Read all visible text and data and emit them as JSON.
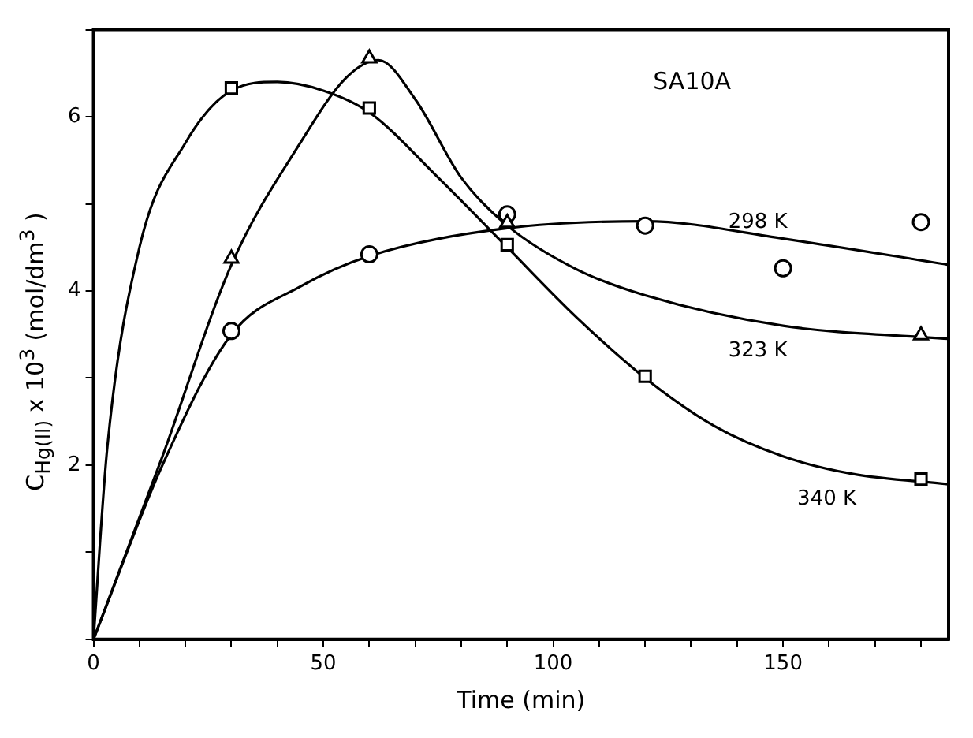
{
  "chart_data": {
    "type": "scatter",
    "xlabel": "Time (min)",
    "ylabel": "C$_{Hg(II)}$ x 10$^{3}$ (mol/dm$^{3}$ )",
    "xlim": [
      0,
      186
    ],
    "ylim": [
      0,
      7
    ],
    "xticks": [
      0,
      {
        "value": 10,
        "label": null
      },
      {
        "value": 20,
        "label": null
      },
      {
        "value": 30,
        "label": null
      },
      {
        "value": 40,
        "label": null
      },
      50,
      {
        "value": 60,
        "label": null
      },
      {
        "value": 70,
        "label": null
      },
      {
        "value": 80,
        "label": null
      },
      {
        "value": 90,
        "label": null
      },
      100,
      {
        "value": 110,
        "label": null
      },
      {
        "value": 120,
        "label": null
      },
      {
        "value": 130,
        "label": null
      },
      {
        "value": 140,
        "label": null
      },
      150,
      {
        "value": 160,
        "label": null
      },
      {
        "value": 170,
        "label": null
      },
      {
        "value": 180,
        "label": null
      }
    ],
    "yticks": [
      {
        "value": 0,
        "label": null
      },
      {
        "value": 1,
        "label": null
      },
      2,
      {
        "value": 3,
        "label": null
      },
      4,
      {
        "value": 5,
        "label": null
      },
      6,
      {
        "value": 7,
        "label": null
      }
    ],
    "grid": false,
    "series": [
      {
        "marker": "circle",
        "color": "#000000",
        "x": [
          30,
          60,
          90,
          120,
          150,
          180
        ],
        "values": [
          3.54,
          4.42,
          4.88,
          4.75,
          4.26,
          4.79
        ]
      },
      {
        "marker": "triangle",
        "color": "#000000",
        "x": [
          30,
          60,
          90,
          180
        ],
        "values": [
          4.37,
          6.67,
          4.78,
          3.49
        ]
      },
      {
        "marker": "square",
        "color": "#000000",
        "x": [
          30,
          60,
          90,
          120,
          180
        ],
        "values": [
          6.33,
          6.1,
          4.53,
          3.02,
          1.84
        ]
      },
      {
        "type": "line",
        "name": "298 K",
        "marker": "none",
        "line_style": "solid",
        "color": "#000000",
        "x": [
          0,
          15,
          30,
          45,
          60,
          90,
          120,
          150,
          186
        ],
        "values": [
          0,
          2.0,
          3.5,
          4.05,
          4.4,
          4.72,
          4.8,
          4.6,
          4.3
        ]
      },
      {
        "type": "line",
        "name": "323 K",
        "marker": "none",
        "line_style": "solid",
        "color": "#000000",
        "x": [
          0,
          15,
          30,
          45,
          55,
          62,
          70,
          80,
          90,
          105,
          120,
          150,
          186
        ],
        "values": [
          0,
          2.1,
          4.3,
          5.7,
          6.45,
          6.65,
          6.2,
          5.3,
          4.75,
          4.25,
          3.95,
          3.6,
          3.45
        ]
      },
      {
        "type": "line",
        "name": "340 K",
        "marker": "none",
        "line_style": "solid",
        "color": "#000000",
        "x": [
          0,
          3,
          10,
          20,
          30,
          40,
          50,
          60,
          75,
          90,
          105,
          120,
          135,
          150,
          165,
          186
        ],
        "values": [
          0,
          2.2,
          4.5,
          5.7,
          6.3,
          6.4,
          6.3,
          6.05,
          5.3,
          4.5,
          3.7,
          3.0,
          2.45,
          2.1,
          1.9,
          1.78
        ]
      }
    ],
    "annotations": [
      "SA10A"
    ]
  }
}
